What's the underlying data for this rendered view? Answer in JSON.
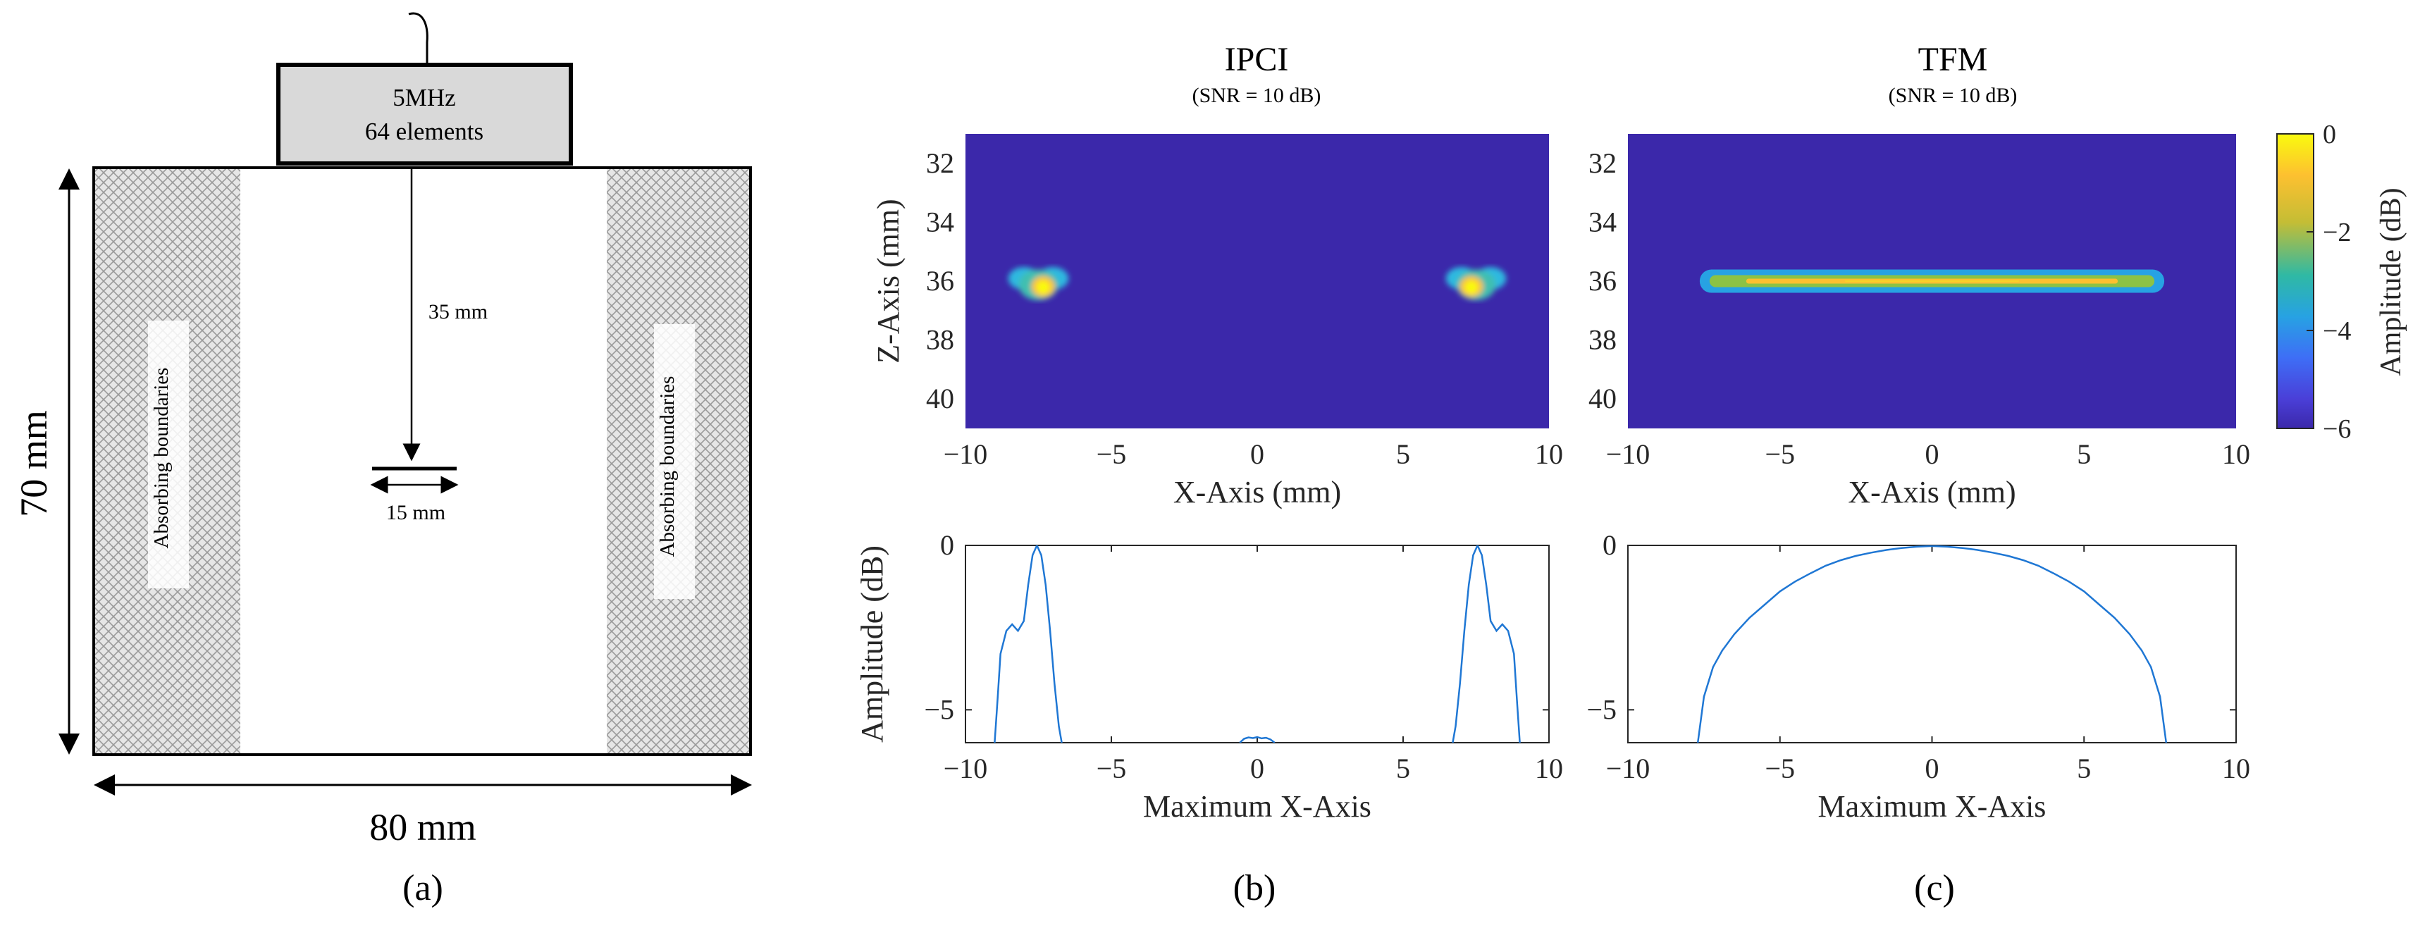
{
  "panel_a": {
    "probe_line1": "5MHz",
    "probe_line2": "64 elements",
    "depth_label": "35 mm",
    "defect_label": "15 mm",
    "boundary_left": "Absorbing boundaries",
    "boundary_right": "Absorbing boundaries",
    "height_label": "70 mm",
    "width_label": "80 mm",
    "panel_label": "(a)"
  },
  "panel_b": {
    "title": "IPCI",
    "subtitle": "(SNR = 10 dB)",
    "panel_label": "(b)"
  },
  "panel_c": {
    "title": "TFM",
    "subtitle": "(SNR = 10 dB)",
    "panel_label": "(c)"
  },
  "colorbar": {
    "label": "Amplitude (dB)",
    "ticks": [
      "0",
      "−2",
      "−4",
      "−6"
    ],
    "colors": [
      "#f9fb0e",
      "#fdc030",
      "#c4bd35",
      "#2fb9a4",
      "#27a2e3",
      "#3e6ef6",
      "#4a3fd8",
      "#3b28aa"
    ]
  },
  "chart_data": [
    {
      "id": "ipci-image",
      "type": "heatmap",
      "title": "IPCI",
      "subtitle": "(SNR = 10 dB)",
      "xlabel": "X-Axis (mm)",
      "ylabel": "Z-Axis (mm)",
      "xlim": [
        -10,
        10
      ],
      "ylim": [
        31,
        41
      ],
      "y_reversed": true,
      "xticks": [
        -10,
        -5,
        0,
        5,
        10
      ],
      "xtick_labels": [
        "−10",
        "−5",
        "0",
        "5",
        "10"
      ],
      "yticks": [
        32,
        34,
        36,
        38,
        40
      ],
      "ytick_labels": [
        "32",
        "34",
        "36",
        "38",
        "40"
      ],
      "clim": [
        -6,
        0
      ],
      "hotspots": [
        {
          "x": -7.5,
          "z": 36.1,
          "width_mm": 1.8,
          "height_mm": 1.1,
          "peak_db": 0
        },
        {
          "x": 7.5,
          "z": 36.1,
          "width_mm": 1.8,
          "height_mm": 1.1,
          "peak_db": 0
        }
      ]
    },
    {
      "id": "tfm-image",
      "type": "heatmap",
      "title": "TFM",
      "subtitle": "(SNR = 10 dB)",
      "xlabel": "X-Axis (mm)",
      "ylabel": "",
      "xlim": [
        -10,
        10
      ],
      "ylim": [
        31,
        41
      ],
      "y_reversed": true,
      "xticks": [
        -10,
        -5,
        0,
        5,
        10
      ],
      "xtick_labels": [
        "−10",
        "−5",
        "0",
        "5",
        "10"
      ],
      "yticks": [
        32,
        34,
        36,
        38,
        40
      ],
      "ytick_labels": [
        "32",
        "34",
        "36",
        "38",
        "40"
      ],
      "clim": [
        -6,
        0
      ],
      "band": {
        "x_from": -7.5,
        "x_to": 7.5,
        "z": 36.0,
        "height_mm": 0.6,
        "peak_db": 0
      }
    },
    {
      "id": "ipci-profile",
      "type": "line",
      "xlabel": "Maximum X-Axis",
      "ylabel": "Amplitude (dB)",
      "xlim": [
        -10,
        10
      ],
      "ylim": [
        -6,
        0
      ],
      "xticks": [
        -10,
        -5,
        0,
        5,
        10
      ],
      "xtick_labels": [
        "−10",
        "−5",
        "0",
        "5",
        "10"
      ],
      "yticks": [
        0,
        -5
      ],
      "ytick_labels": [
        "0",
        "−5"
      ],
      "series": [
        {
          "name": "IPCI",
          "segments": [
            {
              "x": [
                -9.0,
                -8.9,
                -8.8,
                -8.6,
                -8.4,
                -8.2,
                -8.0,
                -7.85,
                -7.7,
                -7.55,
                -7.4,
                -7.25,
                -7.1,
                -6.95,
                -6.8,
                -6.7
              ],
              "y": [
                -6.0,
                -4.7,
                -3.3,
                -2.6,
                -2.4,
                -2.6,
                -2.3,
                -1.2,
                -0.3,
                0.0,
                -0.3,
                -1.2,
                -2.6,
                -4.2,
                -5.5,
                -6.0
              ]
            },
            {
              "x": [
                -0.6,
                -0.45,
                -0.3,
                -0.15,
                0.0,
                0.15,
                0.3,
                0.45,
                0.6
              ],
              "y": [
                -6.0,
                -5.88,
                -5.84,
                -5.86,
                -5.83,
                -5.87,
                -5.85,
                -5.9,
                -6.0
              ]
            },
            {
              "x": [
                6.7,
                6.8,
                6.95,
                7.1,
                7.25,
                7.4,
                7.55,
                7.7,
                7.85,
                8.0,
                8.2,
                8.4,
                8.6,
                8.8,
                8.9,
                9.0
              ],
              "y": [
                -6.0,
                -5.5,
                -4.2,
                -2.6,
                -1.2,
                -0.3,
                0.0,
                -0.3,
                -1.2,
                -2.3,
                -2.6,
                -2.4,
                -2.6,
                -3.3,
                -4.7,
                -6.0
              ]
            }
          ]
        }
      ]
    },
    {
      "id": "tfm-profile",
      "type": "line",
      "xlabel": "Maximum X-Axis",
      "ylabel": "",
      "xlim": [
        -10,
        10
      ],
      "ylim": [
        -6,
        0
      ],
      "xticks": [
        -10,
        -5,
        0,
        5,
        10
      ],
      "xtick_labels": [
        "−10",
        "−5",
        "0",
        "5",
        "10"
      ],
      "yticks": [
        0,
        -5
      ],
      "ytick_labels": [
        "0",
        "−5"
      ],
      "series": [
        {
          "name": "TFM",
          "segments": [
            {
              "x": [
                -7.7,
                -7.5,
                -7.2,
                -6.9,
                -6.5,
                -6.0,
                -5.5,
                -5.0,
                -4.5,
                -4.0,
                -3.5,
                -3.0,
                -2.5,
                -2.0,
                -1.5,
                -1.0,
                -0.5,
                0.0,
                0.5,
                1.0,
                1.5,
                2.0,
                2.5,
                3.0,
                3.5,
                4.0,
                4.5,
                5.0,
                5.5,
                6.0,
                6.5,
                6.9,
                7.2,
                7.5,
                7.7
              ],
              "y": [
                -6.0,
                -4.6,
                -3.7,
                -3.2,
                -2.7,
                -2.2,
                -1.8,
                -1.4,
                -1.1,
                -0.85,
                -0.62,
                -0.45,
                -0.32,
                -0.22,
                -0.14,
                -0.08,
                -0.04,
                -0.02,
                -0.04,
                -0.08,
                -0.14,
                -0.22,
                -0.32,
                -0.45,
                -0.62,
                -0.85,
                -1.1,
                -1.4,
                -1.8,
                -2.2,
                -2.7,
                -3.2,
                -3.7,
                -4.6,
                -6.0
              ]
            }
          ]
        }
      ]
    }
  ]
}
